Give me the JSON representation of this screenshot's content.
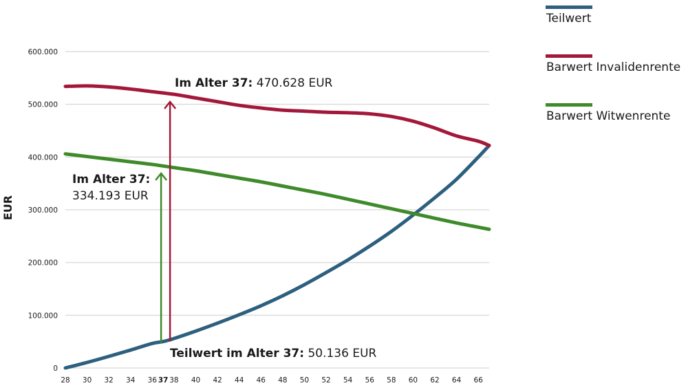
{
  "chart_data": {
    "type": "line",
    "title": "",
    "xlabel": "",
    "ylabel": "EUR",
    "xlim": [
      28,
      67
    ],
    "ylim": [
      0,
      600000
    ],
    "grid": true,
    "legend_position": "top-right",
    "x_ticks": [
      {
        "value": 28,
        "label": "28"
      },
      {
        "value": 30,
        "label": "30"
      },
      {
        "value": 32,
        "label": "32"
      },
      {
        "value": 34,
        "label": "34"
      },
      {
        "value": 36,
        "label": "36"
      },
      {
        "value": 37,
        "label": "37",
        "bold": true
      },
      {
        "value": 38,
        "label": "38"
      },
      {
        "value": 40,
        "label": "40"
      },
      {
        "value": 42,
        "label": "42"
      },
      {
        "value": 44,
        "label": "44"
      },
      {
        "value": 46,
        "label": "46"
      },
      {
        "value": 48,
        "label": "48"
      },
      {
        "value": 50,
        "label": "50"
      },
      {
        "value": 52,
        "label": "52"
      },
      {
        "value": 54,
        "label": "54"
      },
      {
        "value": 56,
        "label": "56"
      },
      {
        "value": 58,
        "label": "58"
      },
      {
        "value": 60,
        "label": "60"
      },
      {
        "value": 62,
        "label": "62"
      },
      {
        "value": 64,
        "label": "64"
      },
      {
        "value": 66,
        "label": "66"
      }
    ],
    "y_ticks": [
      {
        "value": 0,
        "label": "0"
      },
      {
        "value": 100000,
        "label": "100.000"
      },
      {
        "value": 200000,
        "label": "200.000"
      },
      {
        "value": 300000,
        "label": "300.000"
      },
      {
        "value": 400000,
        "label": "400.000"
      },
      {
        "value": 500000,
        "label": "500.000"
      },
      {
        "value": 600000,
        "label": "600.000"
      }
    ],
    "series": [
      {
        "name": "Teilwert",
        "color": "#2d5f7f",
        "x": [
          28,
          30,
          32,
          34,
          36,
          37,
          38,
          40,
          42,
          44,
          46,
          48,
          50,
          52,
          54,
          56,
          58,
          60,
          62,
          64,
          66,
          67
        ],
        "values": [
          0,
          10500,
          22000,
          34000,
          46500,
          50136,
          56000,
          70000,
          85000,
          101000,
          118000,
          137000,
          158000,
          181000,
          205000,
          231000,
          259000,
          290000,
          323000,
          358000,
          400000,
          422000
        ]
      },
      {
        "name": "Barwert Invalidenrente",
        "color": "#a3183a",
        "x": [
          28,
          30,
          32,
          34,
          36,
          37,
          38,
          40,
          42,
          44,
          46,
          48,
          50,
          52,
          54,
          56,
          58,
          60,
          62,
          64,
          66,
          67
        ],
        "values": [
          534000,
          535000,
          533000,
          529000,
          524000,
          470628,
          519000,
          512000,
          505000,
          498000,
          493000,
          489000,
          487000,
          485000,
          484000,
          482000,
          477000,
          468000,
          455000,
          440000,
          430000,
          422000
        ]
      },
      {
        "name": "Barwert Witwenrente",
        "color": "#3f8a2a",
        "x": [
          28,
          30,
          32,
          34,
          36,
          37,
          38,
          40,
          42,
          44,
          46,
          48,
          50,
          52,
          54,
          56,
          58,
          60,
          62,
          64,
          66,
          67
        ],
        "values": [
          406000,
          401000,
          396000,
          391000,
          386000,
          334193,
          380000,
          374000,
          367000,
          360000,
          353000,
          345000,
          337000,
          329000,
          320000,
          311000,
          302000,
          293000,
          284000,
          275000,
          267000,
          263000
        ]
      }
    ],
    "annotations": [
      {
        "bold": "Im Alter 37:",
        "regular": " 470.628 EUR"
      },
      {
        "bold": "Im Alter 37:",
        "regular": "334.193 EUR"
      },
      {
        "bold": "Teilwert im Alter 37:",
        "regular": " 50.136 EUR"
      }
    ]
  }
}
